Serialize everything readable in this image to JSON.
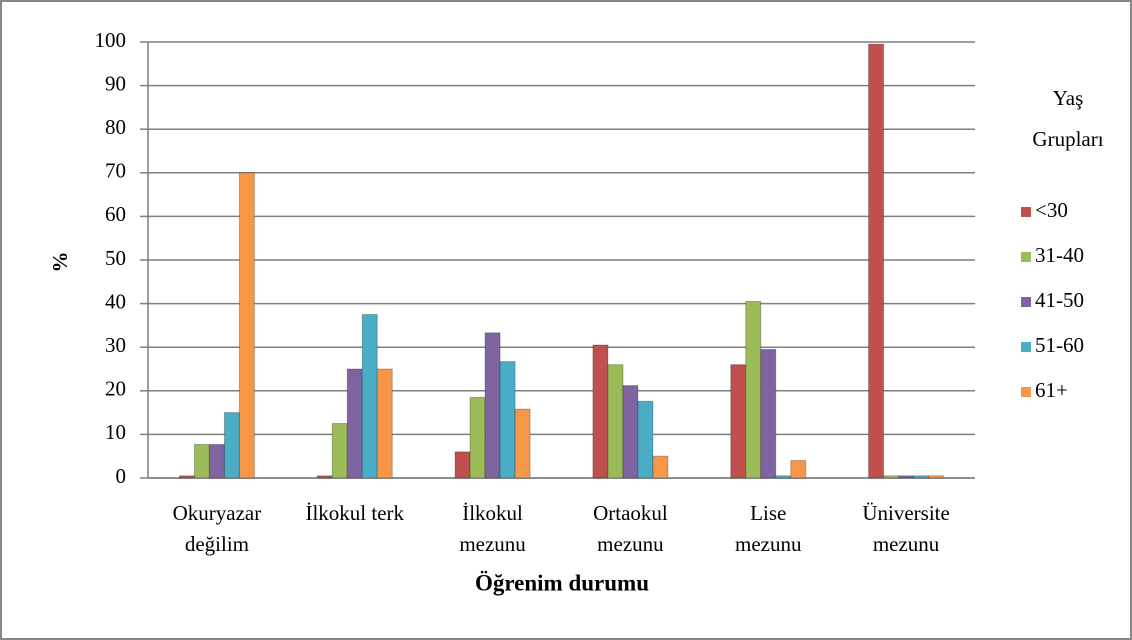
{
  "chart_data": {
    "type": "bar",
    "y_label": "%",
    "x_label": "Öğrenim durumu",
    "legend_title": [
      "Yaş",
      "Grupları"
    ],
    "legend_position": "right",
    "grid": true,
    "categories": [
      [
        "Okuryazar",
        "değilim"
      ],
      [
        "İlkokul terk"
      ],
      [
        "İlkokul",
        "mezunu"
      ],
      [
        "Ortaokul",
        "mezunu"
      ],
      [
        "Lise",
        "mezunu"
      ],
      [
        "Üniversite",
        "mezunu"
      ]
    ],
    "series": [
      {
        "name": "<30",
        "color": "#c0504d",
        "values": [
          0.5,
          0.5,
          6,
          30.5,
          26,
          99.5
        ]
      },
      {
        "name": "31-40",
        "color": "#9bbb59",
        "values": [
          7.7,
          12.5,
          18.5,
          26,
          40.5,
          0.5
        ]
      },
      {
        "name": "41-50",
        "color": "#8064a2",
        "values": [
          7.7,
          25,
          33.3,
          21.2,
          29.5,
          0.5
        ]
      },
      {
        "name": "51-60",
        "color": "#4bacc6",
        "values": [
          15,
          37.5,
          26.7,
          17.6,
          0.5,
          0.5
        ]
      },
      {
        "name": "61+",
        "color": "#f79646",
        "values": [
          70,
          25,
          15.8,
          5,
          4,
          0.5
        ]
      }
    ],
    "ylim": [
      0,
      100
    ],
    "yticks": [
      0,
      10,
      20,
      30,
      40,
      50,
      60,
      70,
      80,
      90,
      100
    ]
  }
}
